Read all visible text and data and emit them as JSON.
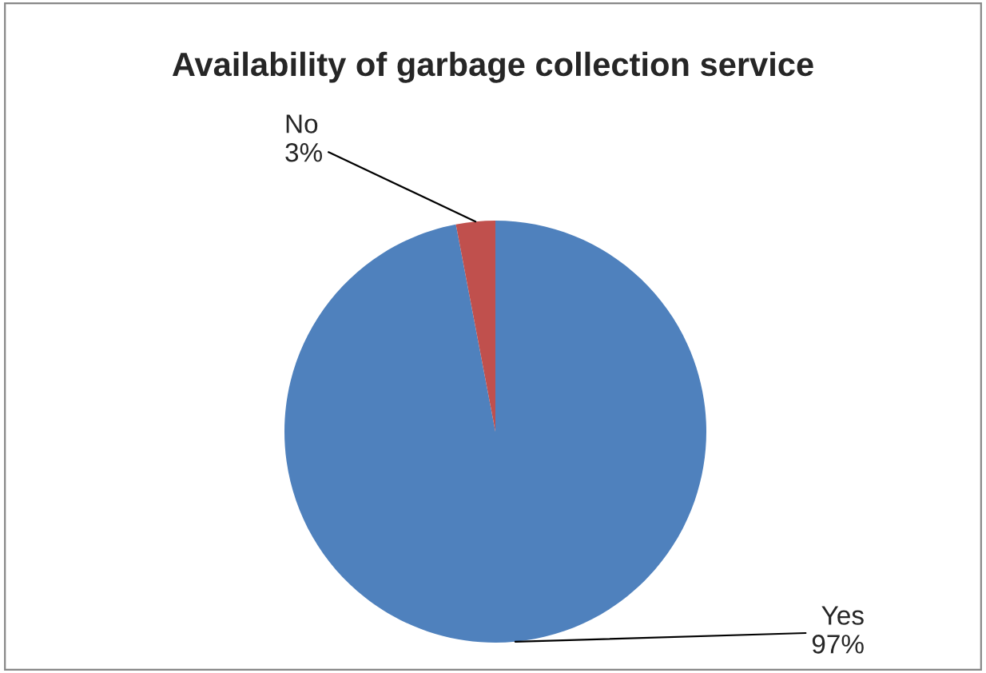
{
  "chart_data": {
    "type": "pie",
    "title": "Availability of garbage collection service",
    "categories": [
      "Yes",
      "No"
    ],
    "values": [
      97,
      3
    ],
    "colors": [
      "#4f81bd",
      "#c0504d"
    ],
    "value_labels": [
      "97%",
      "3%"
    ]
  }
}
